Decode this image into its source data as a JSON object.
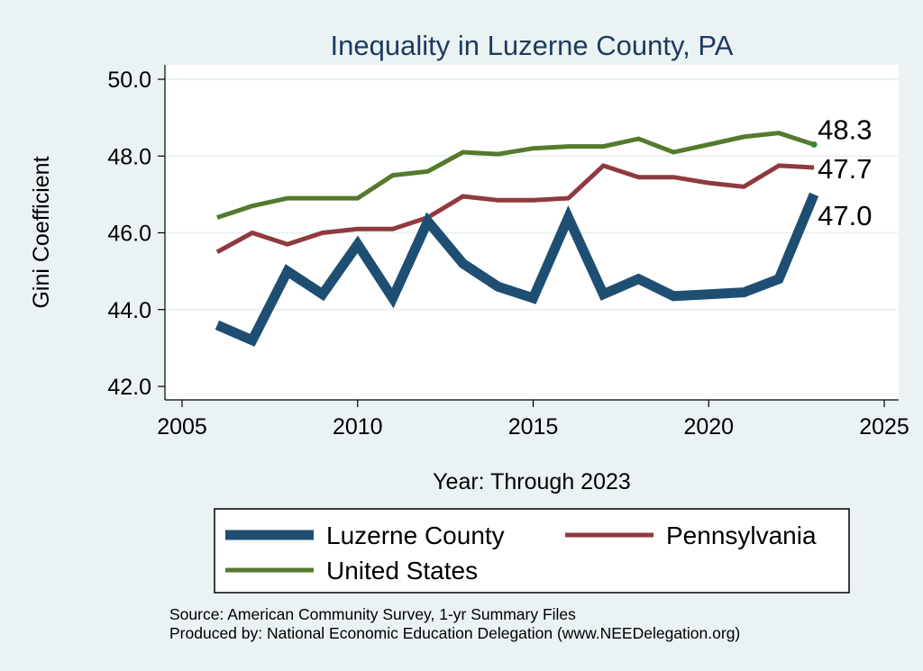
{
  "chart_data": {
    "type": "line",
    "title": "Inequality in Luzerne County, PA",
    "xlabel": "Year: Through 2023",
    "ylabel": "Gini Coefficient",
    "xlim": [
      2005,
      2025
    ],
    "ylim": [
      42.0,
      50.0
    ],
    "xticks": [
      2005,
      2010,
      2015,
      2020,
      2025
    ],
    "yticks": [
      42.0,
      44.0,
      46.0,
      48.0,
      50.0
    ],
    "ytick_labels": [
      "42.0",
      "44.0",
      "46.0",
      "48.0",
      "50.0"
    ],
    "grid": true,
    "series": [
      {
        "name": "Luzerne County",
        "color": "#1f4e73",
        "x": [
          2006,
          2007,
          2008,
          2009,
          2010,
          2011,
          2012,
          2013,
          2014,
          2015,
          2016,
          2017,
          2018,
          2019,
          2020,
          2021,
          2022,
          2023
        ],
        "values": [
          43.6,
          43.2,
          45.0,
          44.4,
          45.7,
          44.3,
          46.3,
          45.2,
          44.6,
          44.3,
          46.4,
          44.4,
          44.8,
          44.35,
          44.4,
          44.45,
          44.8,
          47.0
        ],
        "end_label": "47.0"
      },
      {
        "name": "Pennsylvania",
        "color": "#903a3f",
        "x": [
          2006,
          2007,
          2008,
          2009,
          2010,
          2011,
          2012,
          2013,
          2014,
          2015,
          2016,
          2017,
          2018,
          2019,
          2020,
          2021,
          2022,
          2023
        ],
        "values": [
          45.5,
          46.0,
          45.7,
          46.0,
          46.1,
          46.1,
          46.4,
          46.95,
          46.85,
          46.85,
          46.9,
          47.75,
          47.45,
          47.45,
          47.3,
          47.2,
          47.75,
          47.7
        ],
        "end_label": "47.7"
      },
      {
        "name": "United States",
        "color": "#557a2e",
        "x": [
          2006,
          2007,
          2008,
          2009,
          2010,
          2011,
          2012,
          2013,
          2014,
          2015,
          2016,
          2017,
          2018,
          2019,
          2020,
          2021,
          2022,
          2023
        ],
        "values": [
          46.4,
          46.7,
          46.9,
          46.9,
          46.9,
          47.5,
          47.6,
          48.1,
          48.05,
          48.2,
          48.25,
          48.25,
          48.45,
          48.1,
          48.3,
          48.5,
          48.6,
          48.3
        ],
        "end_label": "48.3"
      }
    ],
    "legend": {
      "position": "bottom",
      "entries": [
        "Luzerne County",
        "Pennsylvania",
        "United States"
      ]
    },
    "footer": [
      "Source: American Community Survey, 1-yr Summary Files",
      "Produced by: National Economic Education Delegation (www.NEEDelegation.org)"
    ]
  }
}
